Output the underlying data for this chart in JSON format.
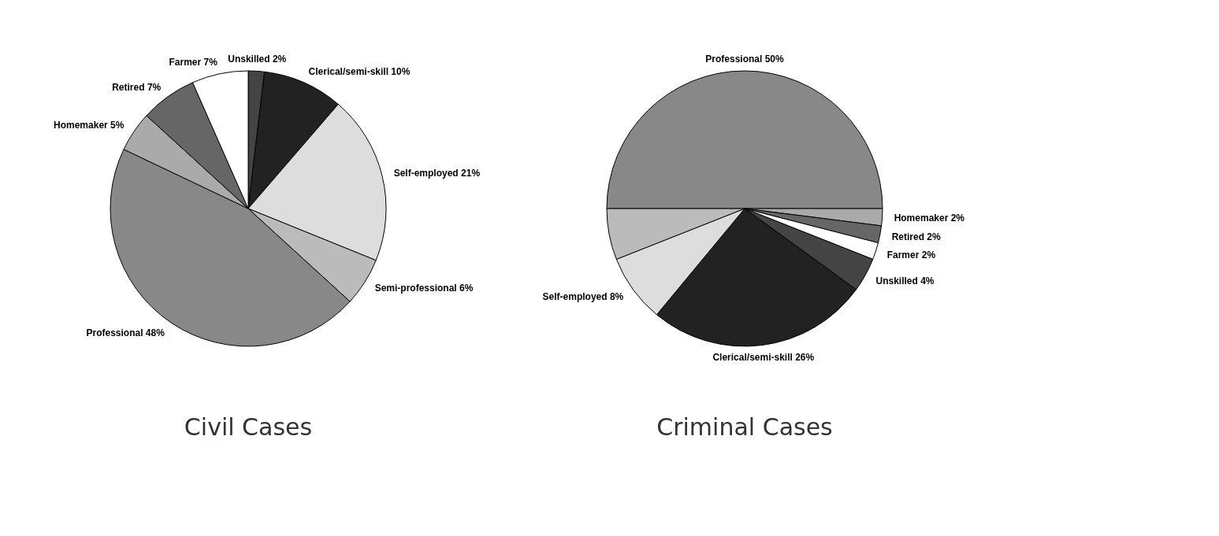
{
  "chart_data": [
    {
      "type": "pie",
      "title": "Civil Cases",
      "categories": [
        "Unskilled",
        "Clerical/semi-skill",
        "Self-employed",
        "Semi-professional",
        "Professional",
        "Homemaker",
        "Retired",
        "Farmer"
      ],
      "values": [
        2,
        10,
        21,
        6,
        48,
        5,
        7,
        7
      ],
      "colors": [
        "#444444",
        "#222222",
        "#dddddd",
        "#bbbbbb",
        "#888888",
        "#aaaaaa",
        "#666666",
        "#ffffff"
      ],
      "value_labels": [
        "2%",
        "10%",
        "21%",
        "6%",
        "48%",
        "5%",
        "7%",
        "7%"
      ],
      "legend": false
    },
    {
      "type": "pie",
      "title": "Criminal Cases",
      "categories": [
        "Professional",
        "Homemaker",
        "Retired",
        "Farmer",
        "Unskilled",
        "Clerical/semi-skill",
        "Self-employed",
        null
      ],
      "values": [
        50,
        2,
        2,
        2,
        4,
        26,
        8,
        6
      ],
      "colors": [
        "#888888",
        "#aaaaaa",
        "#666666",
        "#ffffff",
        "#444444",
        "#222222",
        "#dddddd",
        "#bbbbbb"
      ],
      "value_labels": [
        "50%",
        "2%",
        "2%",
        "2%",
        "4%",
        "26%",
        "8%",
        null
      ],
      "legend": false
    }
  ]
}
